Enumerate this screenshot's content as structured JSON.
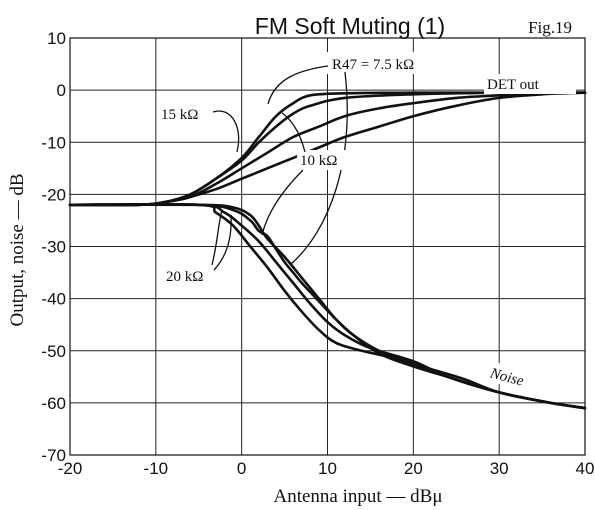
{
  "chart_data": {
    "type": "line",
    "title": "FM Soft Muting (1)",
    "fig_label": "Fig.19",
    "xlabel": "Antenna input — dBμ",
    "ylabel": "Output, noise — dB",
    "xlim": [
      -20,
      40
    ],
    "ylim": [
      -70,
      10
    ],
    "xticks": [
      -20,
      -10,
      0,
      10,
      20,
      30,
      40
    ],
    "yticks": [
      10,
      0,
      -10,
      -20,
      -30,
      -40,
      -50,
      -60,
      -70
    ],
    "xtick_labels": [
      "-20",
      "-10",
      "0",
      "10",
      "20",
      "30",
      "40"
    ],
    "ytick_labels": [
      "10",
      "0",
      "-10",
      "-20",
      "-30",
      "-40",
      "-50",
      "-60",
      "-70"
    ],
    "grid": true,
    "legend": "none",
    "annotations": {
      "r75": "R47 = 7.5 kΩ",
      "r15": "15 kΩ",
      "r10": "10 kΩ",
      "r20": "20 kΩ",
      "det_out": "DET out",
      "noise": "Noise"
    },
    "series": [
      {
        "values": [
          [
            -20,
            -22
          ],
          [
            -12,
            -22
          ],
          [
            -9,
            -21.5
          ],
          [
            -6,
            -20
          ],
          [
            -3,
            -17
          ],
          [
            0,
            -13
          ],
          [
            2,
            -9
          ],
          [
            4,
            -5
          ],
          [
            6,
            -2.5
          ],
          [
            8,
            -1
          ],
          [
            12,
            -0.6
          ],
          [
            20,
            -0.5
          ],
          [
            30,
            -0.5
          ],
          [
            40,
            -0.5
          ]
        ]
      },
      {
        "values": [
          [
            -20,
            -22
          ],
          [
            -12,
            -22
          ],
          [
            -9,
            -21.5
          ],
          [
            -6,
            -20
          ],
          [
            -3,
            -17
          ],
          [
            0,
            -13.5
          ],
          [
            2,
            -10
          ],
          [
            4,
            -7
          ],
          [
            6,
            -4.5
          ],
          [
            8,
            -3
          ],
          [
            12,
            -1.5
          ],
          [
            20,
            -0.8
          ],
          [
            30,
            -0.5
          ],
          [
            40,
            -0.5
          ]
        ]
      },
      {
        "values": [
          [
            -20,
            -22
          ],
          [
            -12,
            -22
          ],
          [
            -9,
            -21.5
          ],
          [
            -6,
            -20.5
          ],
          [
            -3,
            -18
          ],
          [
            0,
            -15
          ],
          [
            3,
            -12
          ],
          [
            6,
            -9
          ],
          [
            9,
            -7
          ],
          [
            12,
            -5
          ],
          [
            16,
            -3.5
          ],
          [
            20,
            -2.5
          ],
          [
            25,
            -1.5
          ],
          [
            30,
            -1
          ],
          [
            35,
            -0.5
          ],
          [
            40,
            -0.5
          ]
        ]
      },
      {
        "values": [
          [
            -20,
            -22
          ],
          [
            -12,
            -22
          ],
          [
            -9,
            -21.5
          ],
          [
            -6,
            -20.5
          ],
          [
            -3,
            -19
          ],
          [
            0,
            -17
          ],
          [
            3,
            -15
          ],
          [
            6,
            -13
          ],
          [
            9,
            -11
          ],
          [
            12,
            -9
          ],
          [
            16,
            -7
          ],
          [
            20,
            -5
          ],
          [
            25,
            -3
          ],
          [
            30,
            -1.5
          ],
          [
            35,
            -0.8
          ],
          [
            40,
            -0.5
          ]
        ]
      },
      {
        "values": [
          [
            -20,
            -22
          ],
          [
            -5,
            -22
          ],
          [
            -1,
            -23
          ],
          [
            1,
            -25
          ],
          [
            2,
            -27
          ],
          [
            3,
            -28
          ],
          [
            4,
            -30.5
          ],
          [
            5,
            -33
          ],
          [
            6,
            -35
          ],
          [
            7,
            -37
          ],
          [
            9,
            -40.5
          ],
          [
            11,
            -44
          ],
          [
            13,
            -47
          ],
          [
            16,
            -50.5
          ],
          [
            20,
            -53
          ],
          [
            24,
            -55
          ],
          [
            30,
            -58
          ],
          [
            36,
            -60
          ],
          [
            40,
            -61
          ]
        ]
      },
      {
        "values": [
          [
            -20,
            -22
          ],
          [
            -5,
            -22
          ],
          [
            -1,
            -22.5
          ],
          [
            1,
            -24
          ],
          [
            2,
            -26
          ],
          [
            3,
            -28.5
          ],
          [
            5,
            -32
          ],
          [
            7,
            -36
          ],
          [
            9,
            -40
          ],
          [
            11,
            -44
          ],
          [
            13,
            -47
          ],
          [
            16,
            -50
          ],
          [
            20,
            -52.5
          ],
          [
            24,
            -55
          ],
          [
            30,
            -58
          ],
          [
            36,
            -60
          ],
          [
            40,
            -61
          ]
        ]
      },
      {
        "values": [
          [
            -20,
            -22
          ],
          [
            -5,
            -22
          ],
          [
            -2,
            -23.5
          ],
          [
            0,
            -26
          ],
          [
            2,
            -29
          ],
          [
            4,
            -33
          ],
          [
            6,
            -37
          ],
          [
            8,
            -41
          ],
          [
            10,
            -44.5
          ],
          [
            12,
            -47
          ],
          [
            15,
            -49.5
          ],
          [
            20,
            -52
          ],
          [
            24,
            -55
          ],
          [
            30,
            -58
          ],
          [
            36,
            -60
          ],
          [
            40,
            -61
          ]
        ]
      },
      {
        "values": [
          [
            -20,
            -22
          ],
          [
            -5,
            -22
          ],
          [
            -3,
            -23.5
          ],
          [
            -1,
            -26
          ],
          [
            1,
            -30
          ],
          [
            3,
            -34
          ],
          [
            5,
            -38.5
          ],
          [
            7,
            -42.5
          ],
          [
            9,
            -46
          ],
          [
            11,
            -48.5
          ],
          [
            14,
            -50
          ],
          [
            18,
            -51.5
          ],
          [
            22,
            -53.5
          ],
          [
            26,
            -55.5
          ],
          [
            30,
            -58
          ],
          [
            36,
            -60
          ],
          [
            40,
            -61
          ]
        ]
      }
    ]
  }
}
